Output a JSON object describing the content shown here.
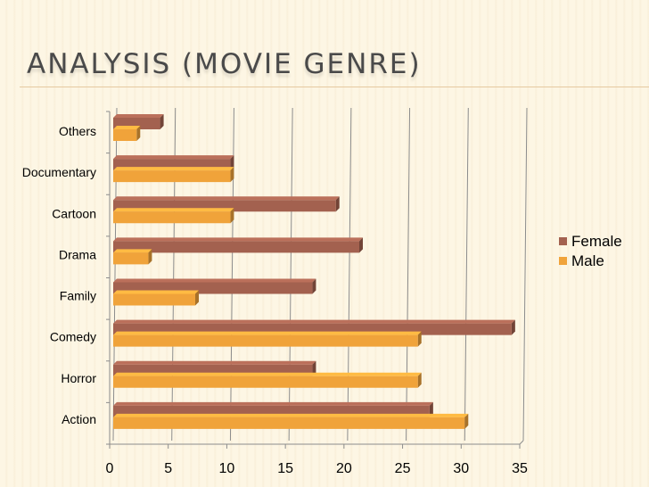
{
  "slide": {
    "title": "ANALYSIS (MOVIE GENRE)"
  },
  "chart_data": {
    "type": "bar",
    "orientation": "horizontal",
    "title": "",
    "xlabel": "",
    "ylabel": "",
    "categories": [
      "Others",
      "Documentary",
      "Cartoon",
      "Drama",
      "Family",
      "Comedy",
      "Horror",
      "Action"
    ],
    "series": [
      {
        "name": "Female",
        "color": "#a3614f",
        "values": [
          4,
          10,
          19,
          21,
          17,
          34,
          17,
          27
        ]
      },
      {
        "name": "Male",
        "color": "#f0a33a",
        "values": [
          2,
          10,
          10,
          3,
          7,
          26,
          26,
          30
        ]
      }
    ],
    "xlim": [
      0,
      35
    ],
    "xticks": [
      "0",
      "5",
      "10",
      "15",
      "20",
      "25",
      "30",
      "35"
    ],
    "grid": true,
    "legend_position": "right"
  }
}
